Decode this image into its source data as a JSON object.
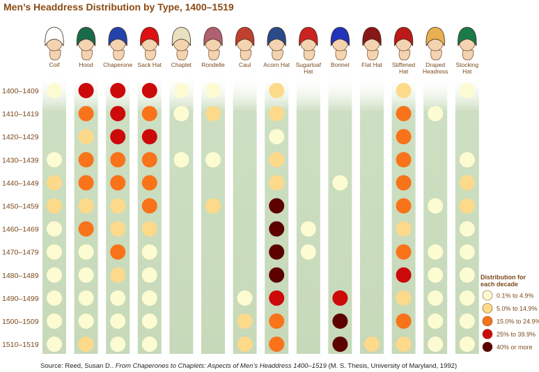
{
  "chart_data": {
    "type": "heatmap",
    "title": "Men’s Headdress Distribution by Type, 1400–1519",
    "columns": [
      "Coif",
      "Hood",
      "Chaperone",
      "Sack Hat",
      "Chaplet",
      "Rondelle",
      "Caul",
      "Acorn Hat",
      "Sugarloaf Hat",
      "Bonnet",
      "Flat Hat",
      "Stiffened Hat",
      "Draped Headress",
      "Stocking Hat"
    ],
    "rows": [
      "1400–1409",
      "1410–1419",
      "1420–1429",
      "1430–1439",
      "1440–1449",
      "1450–1459",
      "1460–1469",
      "1470–1479",
      "1480–1489",
      "1490–1499",
      "1500–1509",
      "1510–1519"
    ],
    "legend_title": "Distribution for each decade",
    "legend_placement": "bottom-right",
    "categories": [
      {
        "label": "0.1% to 4.9%",
        "color": "#fdfbd2"
      },
      {
        "label": "5.0% to 14.9%",
        "color": "#fdd98a"
      },
      {
        "label": "15.0% to 24.9%",
        "color": "#f8731a"
      },
      {
        "label": "25% to 39.9%",
        "color": "#cc0a0a"
      },
      {
        "label": "40% or more",
        "color": "#5c0000"
      }
    ],
    "values": [
      [
        1,
        4,
        4,
        4,
        1,
        1,
        0,
        2,
        0,
        0,
        0,
        2,
        0,
        1
      ],
      [
        0,
        3,
        4,
        3,
        1,
        2,
        0,
        2,
        0,
        0,
        0,
        3,
        1,
        0
      ],
      [
        0,
        2,
        4,
        4,
        0,
        0,
        0,
        1,
        0,
        0,
        0,
        3,
        0,
        0
      ],
      [
        1,
        3,
        3,
        3,
        1,
        1,
        0,
        2,
        0,
        0,
        0,
        3,
        0,
        1
      ],
      [
        2,
        3,
        3,
        3,
        0,
        0,
        0,
        2,
        0,
        1,
        0,
        3,
        0,
        2
      ],
      [
        2,
        2,
        2,
        3,
        0,
        2,
        0,
        5,
        0,
        0,
        0,
        3,
        1,
        2
      ],
      [
        1,
        3,
        2,
        2,
        0,
        0,
        0,
        5,
        1,
        0,
        0,
        2,
        0,
        1
      ],
      [
        1,
        1,
        3,
        1,
        0,
        0,
        0,
        5,
        1,
        0,
        0,
        3,
        1,
        1
      ],
      [
        1,
        1,
        2,
        1,
        0,
        0,
        0,
        5,
        0,
        0,
        0,
        4,
        1,
        1
      ],
      [
        1,
        1,
        1,
        1,
        0,
        0,
        1,
        4,
        0,
        4,
        0,
        2,
        1,
        1
      ],
      [
        1,
        1,
        1,
        1,
        0,
        0,
        2,
        3,
        0,
        5,
        0,
        3,
        1,
        1
      ],
      [
        1,
        2,
        1,
        1,
        0,
        0,
        2,
        3,
        0,
        5,
        2,
        2,
        1,
        1
      ]
    ]
  },
  "hat_colors": [
    "#ffffff",
    "#1a6b4a",
    "#2244aa",
    "#dd1111",
    "#e9e0c0",
    "#b06070",
    "#c04030",
    "#2a4a8a",
    "#cc2222",
    "#2233bb",
    "#881818",
    "#bb1a1a",
    "#e8b050",
    "#1a7a4a"
  ],
  "source": {
    "prefix": "Source: Reed, Susan D.. ",
    "italic": "From Chaperones to Chaplets: Aspects of Men’s Headdress 1400–1519",
    "suffix": " (M. S. Thesis, University of Maryland, 1992)"
  }
}
